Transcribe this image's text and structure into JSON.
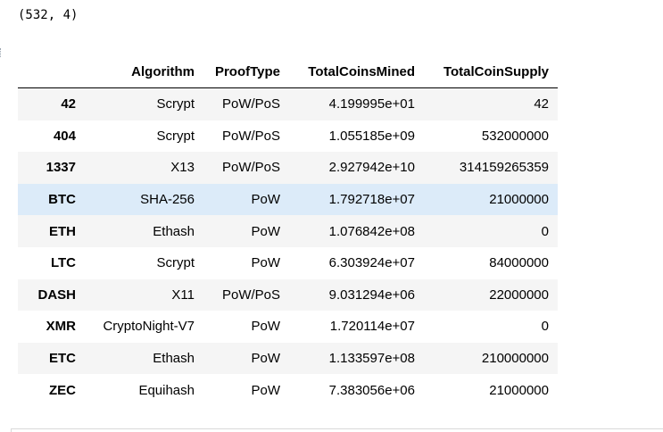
{
  "output": {
    "shape_text": "(532, 4)"
  },
  "table": {
    "columns": [
      "",
      "Algorithm",
      "ProofType",
      "TotalCoinsMined",
      "TotalCoinSupply"
    ],
    "rows": [
      {
        "index": "42",
        "algorithm": "Scrypt",
        "proof": "PoW/PoS",
        "mined": "4.199995e+01",
        "supply": "42"
      },
      {
        "index": "404",
        "algorithm": "Scrypt",
        "proof": "PoW/PoS",
        "mined": "1.055185e+09",
        "supply": "532000000"
      },
      {
        "index": "1337",
        "algorithm": "X13",
        "proof": "PoW/PoS",
        "mined": "2.927942e+10",
        "supply": "314159265359"
      },
      {
        "index": "BTC",
        "algorithm": "SHA-256",
        "proof": "PoW",
        "mined": "1.792718e+07",
        "supply": "21000000"
      },
      {
        "index": "ETH",
        "algorithm": "Ethash",
        "proof": "PoW",
        "mined": "1.076842e+08",
        "supply": "0"
      },
      {
        "index": "LTC",
        "algorithm": "Scrypt",
        "proof": "PoW",
        "mined": "6.303924e+07",
        "supply": "84000000"
      },
      {
        "index": "DASH",
        "algorithm": "X11",
        "proof": "PoW/PoS",
        "mined": "9.031294e+06",
        "supply": "22000000"
      },
      {
        "index": "XMR",
        "algorithm": "CryptoNight-V7",
        "proof": "PoW",
        "mined": "1.720114e+07",
        "supply": "0"
      },
      {
        "index": "ETC",
        "algorithm": "Ethash",
        "proof": "PoW",
        "mined": "1.133597e+08",
        "supply": "210000000"
      },
      {
        "index": "ZEC",
        "algorithm": "Equihash",
        "proof": "PoW",
        "mined": "7.383056e+06",
        "supply": "21000000"
      }
    ],
    "highlighted_row": "BTC"
  },
  "colors": {
    "striped_row": "#f5f5f5",
    "hover_row": "#dcebf9",
    "header_rule": "#000000"
  }
}
